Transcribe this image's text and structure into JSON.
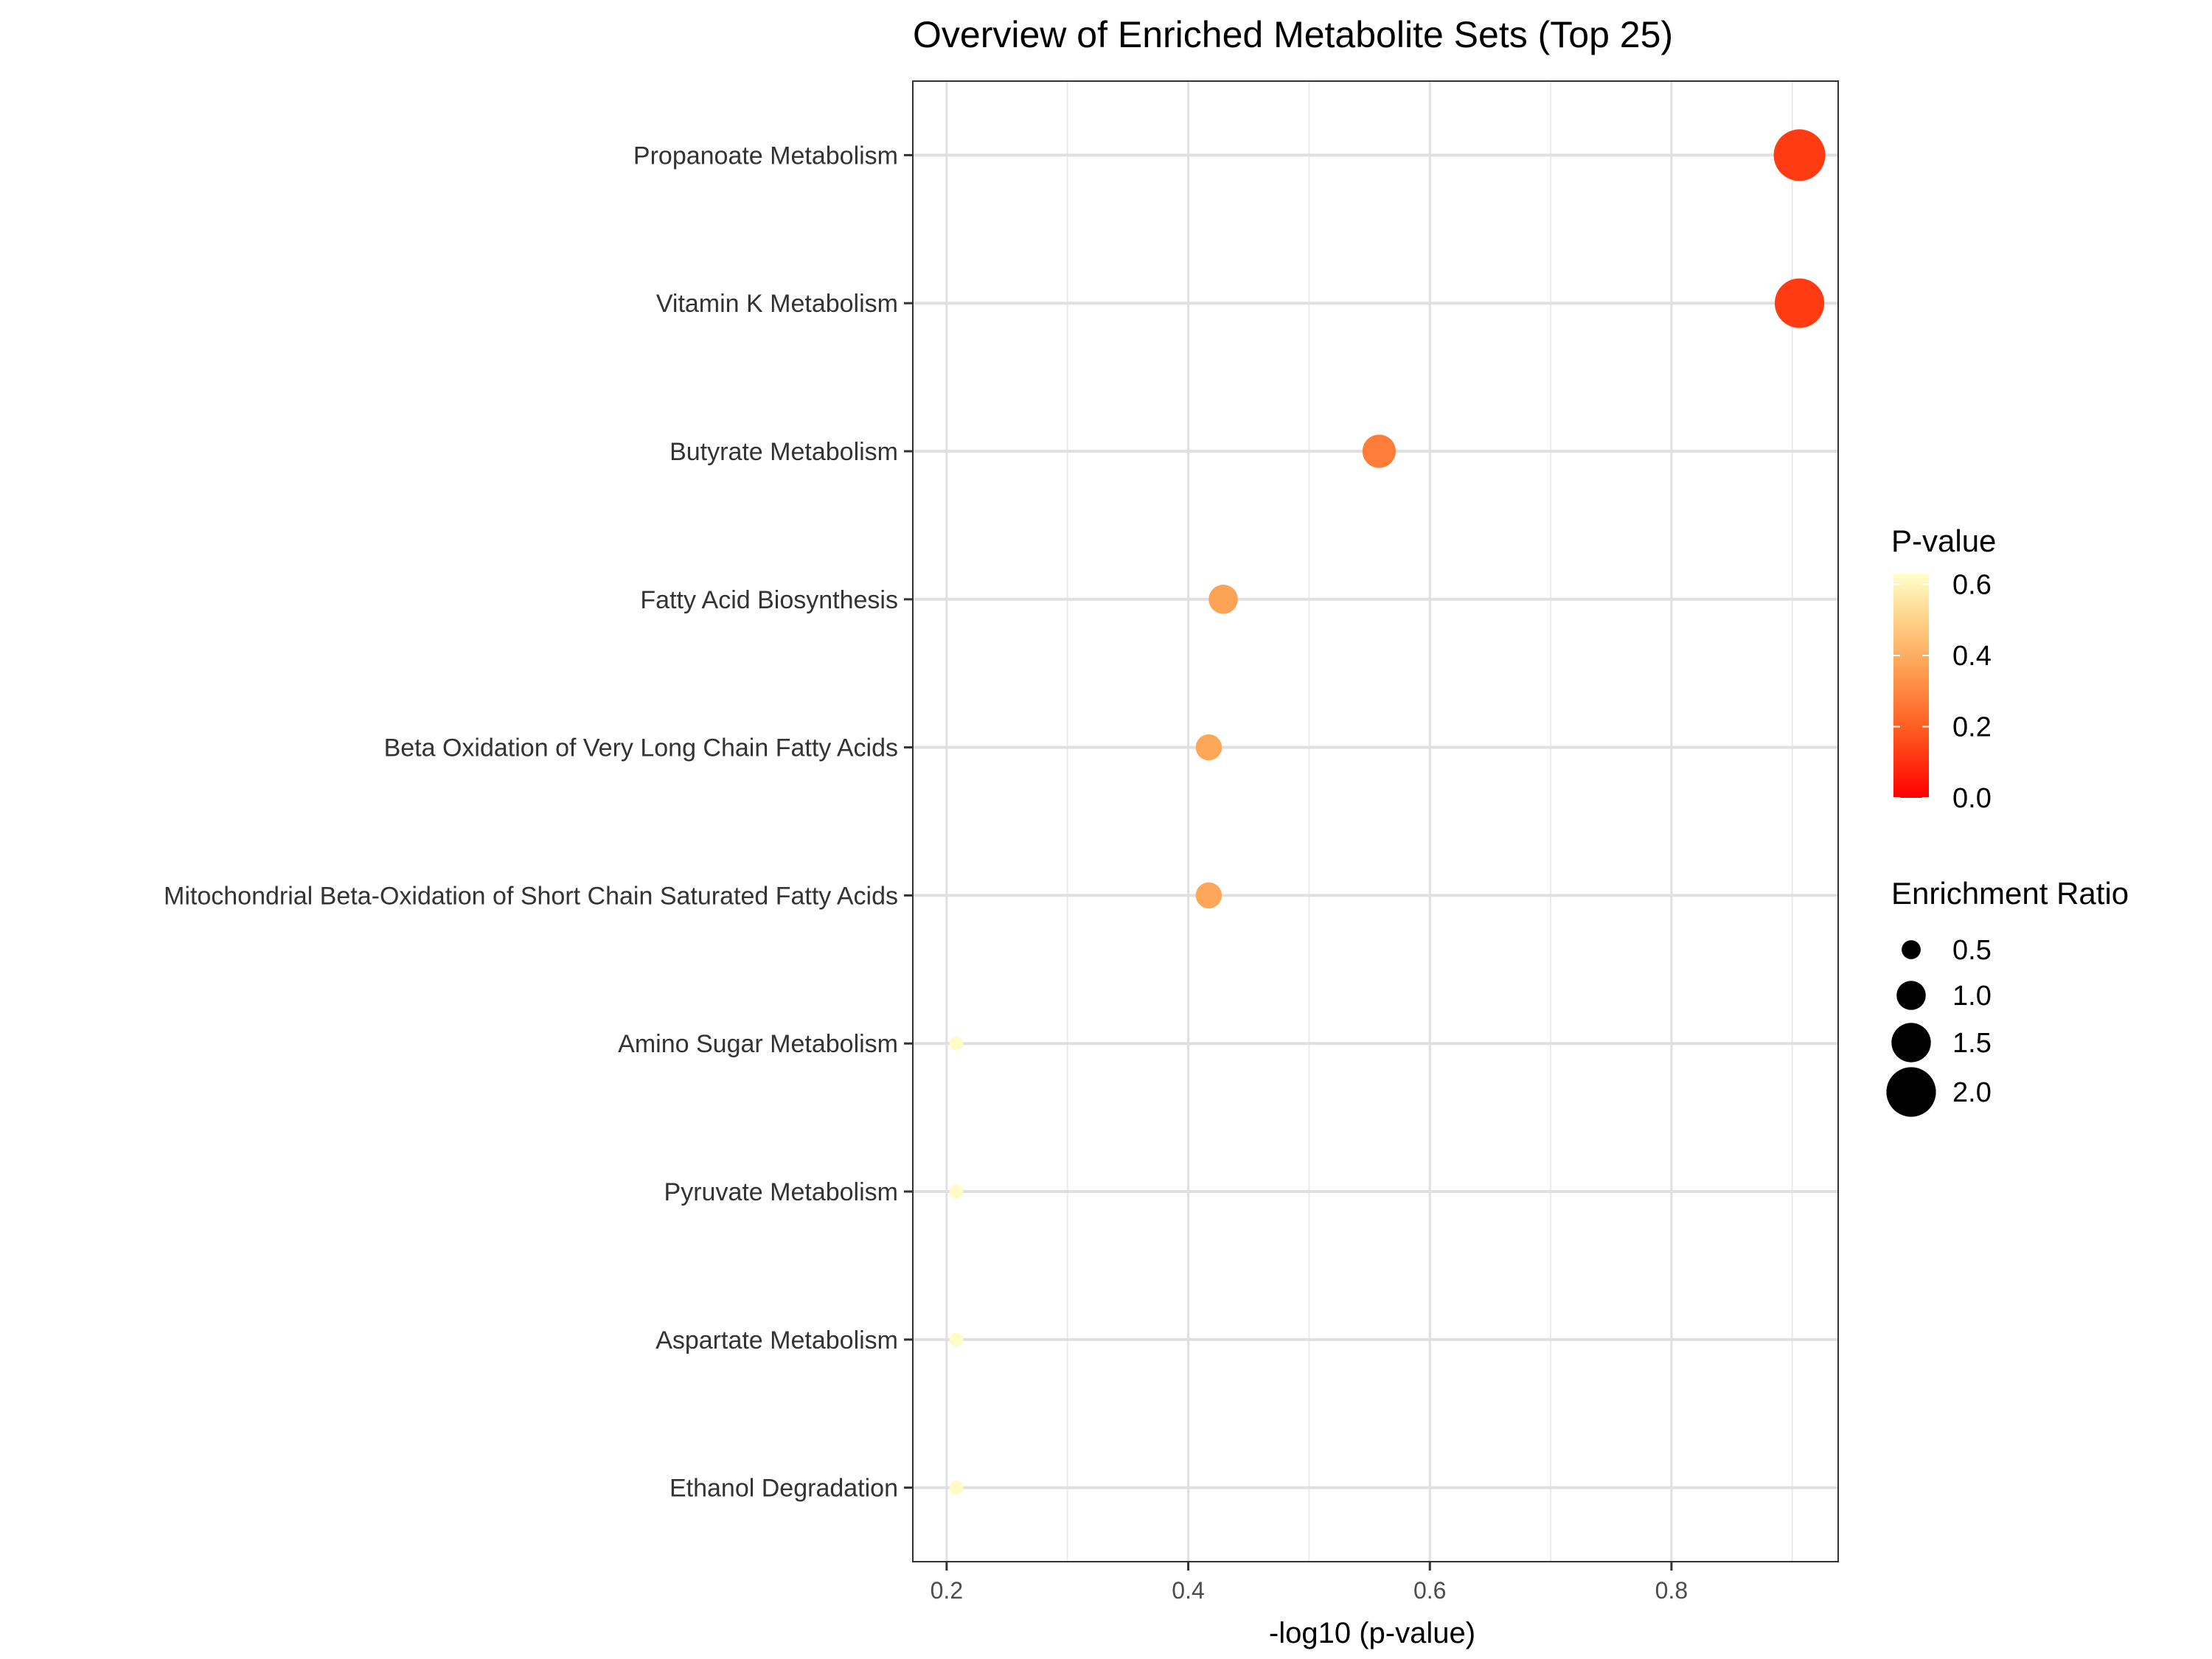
{
  "chart_data": {
    "type": "scatter",
    "title": "Overview of Enriched Metabolite Sets (Top 25)",
    "xlabel": "-log10 (p-value)",
    "ylabel": "",
    "xlim": [
      0.172,
      0.938
    ],
    "x_ticks": [
      0.2,
      0.4,
      0.6,
      0.8
    ],
    "x_tick_labels": [
      "0.2",
      "0.4",
      "0.6",
      "0.8"
    ],
    "grid": true,
    "legend_position": "right",
    "categories": [
      "Propanoate Metabolism",
      "Vitamin K Metabolism",
      "Butyrate Metabolism",
      "Fatty Acid Biosynthesis",
      "Beta Oxidation of Very Long Chain Fatty Acids",
      "Mitochondrial Beta-Oxidation of Short Chain Saturated Fatty Acids",
      "Amino Sugar Metabolism",
      "Pyruvate Metabolism",
      "Aspartate Metabolism",
      "Ethanol Degradation"
    ],
    "points": [
      {
        "category": "Propanoate Metabolism",
        "neg_log10_p": 0.906,
        "p_value": 0.124,
        "enrichment_ratio": 2.1
      },
      {
        "category": "Vitamin K Metabolism",
        "neg_log10_p": 0.906,
        "p_value": 0.124,
        "enrichment_ratio": 2.0
      },
      {
        "category": "Butyrate Metabolism",
        "neg_log10_p": 0.558,
        "p_value": 0.277,
        "enrichment_ratio": 1.2
      },
      {
        "category": "Fatty Acid Biosynthesis",
        "neg_log10_p": 0.429,
        "p_value": 0.373,
        "enrichment_ratio": 1.0
      },
      {
        "category": "Beta Oxidation of Very Long Chain Fatty Acids",
        "neg_log10_p": 0.417,
        "p_value": 0.383,
        "enrichment_ratio": 0.85
      },
      {
        "category": "Mitochondrial Beta-Oxidation of Short Chain Saturated Fatty Acids",
        "neg_log10_p": 0.417,
        "p_value": 0.383,
        "enrichment_ratio": 0.85
      },
      {
        "category": "Amino Sugar Metabolism",
        "neg_log10_p": 0.208,
        "p_value": 0.619,
        "enrichment_ratio": 0.25
      },
      {
        "category": "Pyruvate Metabolism",
        "neg_log10_p": 0.208,
        "p_value": 0.619,
        "enrichment_ratio": 0.25
      },
      {
        "category": "Aspartate Metabolism",
        "neg_log10_p": 0.208,
        "p_value": 0.619,
        "enrichment_ratio": 0.25
      },
      {
        "category": "Ethanol Degradation",
        "neg_log10_p": 0.208,
        "p_value": 0.619,
        "enrichment_ratio": 0.25
      }
    ],
    "color_legend": {
      "title": "P-value",
      "range": [
        0.0,
        0.63
      ],
      "ticks": [
        0.0,
        0.2,
        0.4,
        0.6
      ],
      "tick_labels": [
        "0.0",
        "0.2",
        "0.4",
        "0.6"
      ],
      "low_color": "#ff0000",
      "high_color": "#ffffcc"
    },
    "size_legend": {
      "title": "Enrichment Ratio",
      "values": [
        0.5,
        1.0,
        1.5,
        2.0
      ],
      "labels": [
        "0.5",
        "1.0",
        "1.5",
        "2.0"
      ]
    }
  }
}
